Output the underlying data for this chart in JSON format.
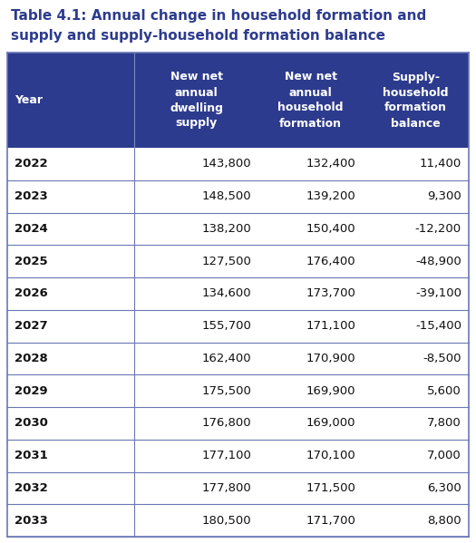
{
  "title_line1": "Table 4.1: Annual change in household formation and",
  "title_line2": "supply and supply-household formation balance",
  "title_color": "#2D3B8E",
  "header_bg": "#2D3B8E",
  "header_text_color": "#FFFFFF",
  "col_headers": [
    "Year",
    "New net\nannual\ndwelling\nsupply",
    "New net\nannual\nhousehold\nformation",
    "Supply-\nhousehold\nformation\nbalance"
  ],
  "years": [
    "2022",
    "2023",
    "2024",
    "2025",
    "2026",
    "2027",
    "2028",
    "2029",
    "2030",
    "2031",
    "2032",
    "2033"
  ],
  "supply": [
    "143,800",
    "148,500",
    "138,200",
    "127,500",
    "134,600",
    "155,700",
    "162,400",
    "175,500",
    "176,800",
    "177,100",
    "177,800",
    "180,500"
  ],
  "household_formation": [
    "132,400",
    "139,200",
    "150,400",
    "176,400",
    "173,700",
    "171,100",
    "170,900",
    "169,900",
    "169,000",
    "170,100",
    "171,500",
    "171,700"
  ],
  "balance": [
    "11,400",
    "9,300",
    "-12,200",
    "-48,900",
    "-39,100",
    "-15,400",
    "-8,500",
    "5,600",
    "7,800",
    "7,000",
    "6,300",
    "8,800"
  ],
  "divider_color": "#6B77B5",
  "data_fontsize": 9.5,
  "year_fontsize": 9.5,
  "header_fontsize": 9.0,
  "title_fontsize": 11.0,
  "background_color": "#FFFFFF"
}
